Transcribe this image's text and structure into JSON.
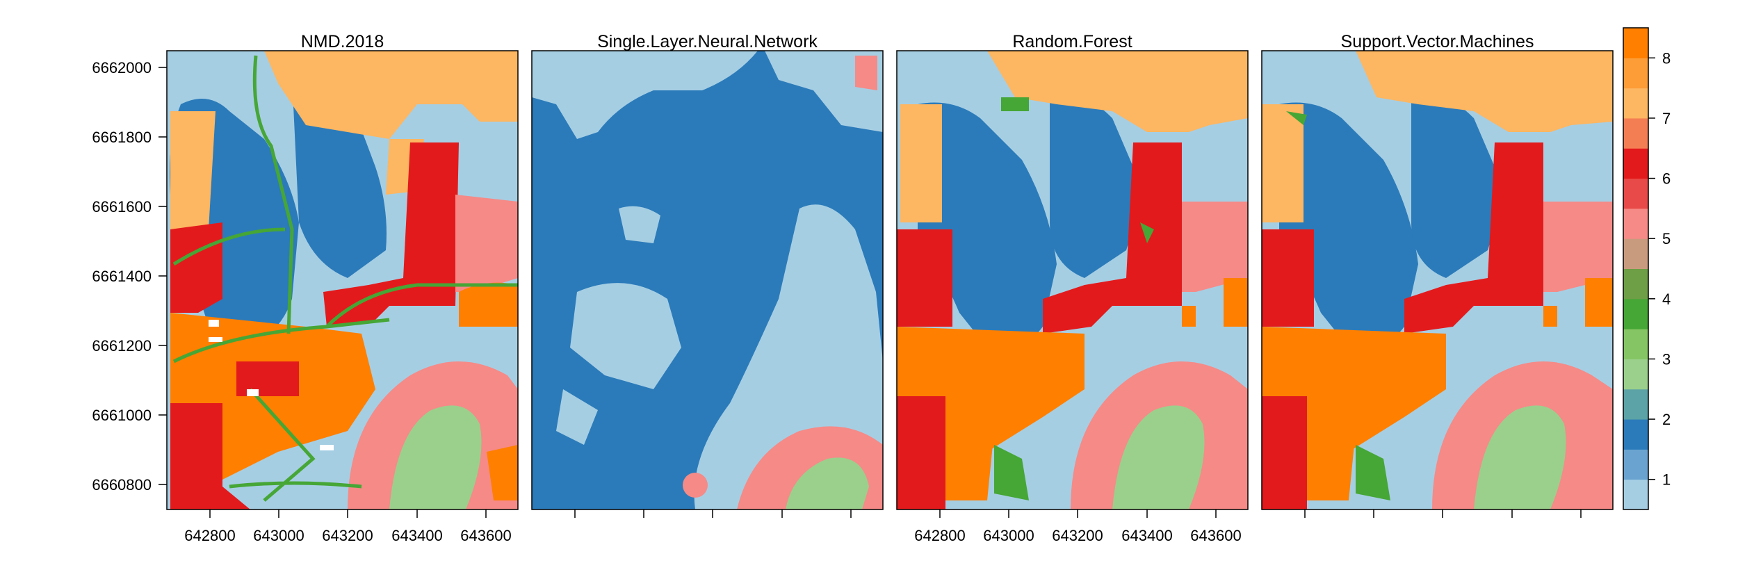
{
  "figure": {
    "panels": [
      {
        "id": "nmd",
        "title": "NMD.2018",
        "show_x_labels": true,
        "show_y_labels": true
      },
      {
        "id": "slnn",
        "title": "Single.Layer.Neural.Network",
        "show_x_labels": false,
        "show_y_labels": false
      },
      {
        "id": "rf",
        "title": "Random.Forest",
        "show_x_labels": true,
        "show_y_labels": false
      },
      {
        "id": "svm",
        "title": "Support.Vector.Machines",
        "show_x_labels": false,
        "show_y_labels": false
      }
    ],
    "x_ticks": [
      {
        "label": "642800"
      },
      {
        "label": "643000"
      },
      {
        "label": "643200"
      },
      {
        "label": "643400"
      },
      {
        "label": "643600"
      }
    ],
    "y_ticks": [
      {
        "label": "6662000"
      },
      {
        "label": "6661800"
      },
      {
        "label": "6661600"
      },
      {
        "label": "6661400"
      },
      {
        "label": "6661200"
      },
      {
        "label": "6661000"
      },
      {
        "label": "6660800"
      }
    ],
    "legend": {
      "range": [
        0.5,
        8.5
      ],
      "colors": [
        "#a6cee3",
        "#6ba3d0",
        "#2b7bba",
        "#5ba3a6",
        "#9bd08c",
        "#86c564",
        "#46a636",
        "#6e9e46",
        "#c99b7e",
        "#f58a87",
        "#e74a48",
        "#e31a1c",
        "#f47e54",
        "#fdb661",
        "#fd9d38",
        "#ff7f00"
      ],
      "ticks": [
        {
          "label": "1",
          "value": 1
        },
        {
          "label": "2",
          "value": 2
        },
        {
          "label": "3",
          "value": 3
        },
        {
          "label": "4",
          "value": 4
        },
        {
          "label": "5",
          "value": 5
        },
        {
          "label": "6",
          "value": 6
        },
        {
          "label": "7",
          "value": 7
        },
        {
          "label": "8",
          "value": 8
        }
      ]
    }
  }
}
